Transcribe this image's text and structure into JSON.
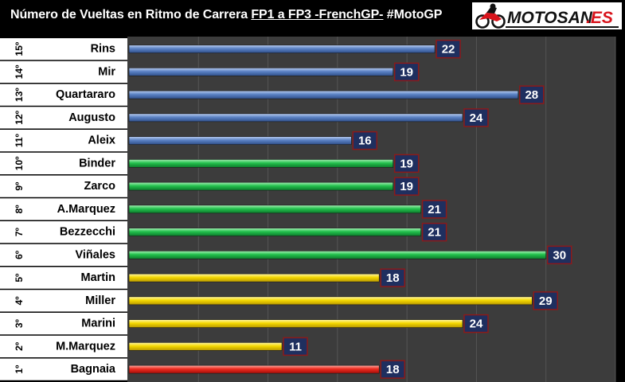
{
  "header": {
    "title_part1": "Número de Vueltas en Ritmo de Carrera ",
    "title_part2": "FP1 a FP3 -FrenchGP-",
    "title_part3": " #MotoGP",
    "logo_main": "MOTOSAN",
    "logo_suffix": ".ES"
  },
  "colors": {
    "background": "#000000",
    "plot_background": "#3c3c3c",
    "label_background": "#ffffff",
    "value_badge": "#1f2f5f",
    "value_badge_border": "#8b1a1a",
    "blue_bar": "#4f74b3",
    "green_bar": "#21b84a",
    "yellow_bar": "#f2d400",
    "red_bar": "#e8251c",
    "logo_red": "#d8141c"
  },
  "chart_data": {
    "type": "bar",
    "orientation": "horizontal",
    "title": "Número de Vueltas en Ritmo de Carrera FP1 a FP3 -FrenchGP- #MotoGP",
    "categories": [
      "Rins",
      "Mir",
      "Quartararo",
      "Augusto",
      "Aleix",
      "Binder",
      "Zarco",
      "A.Marquez",
      "Bezzecchi",
      "Viñales",
      "Martin",
      "Miller",
      "Marini",
      "M.Marquez",
      "Bagnaia"
    ],
    "positions": [
      "15º",
      "14º",
      "13º",
      "12º",
      "11º",
      "10º",
      "9º",
      "8º",
      "7º",
      "6º",
      "5º",
      "4º",
      "3º",
      "2º",
      "1º"
    ],
    "values": [
      22,
      19,
      28,
      24,
      16,
      19,
      19,
      21,
      21,
      30,
      18,
      29,
      24,
      11,
      18
    ],
    "bar_colors": [
      "blue",
      "blue",
      "blue",
      "blue",
      "blue",
      "green",
      "green",
      "green",
      "green",
      "green",
      "yellow",
      "yellow",
      "yellow",
      "yellow",
      "red"
    ],
    "xlim": [
      0,
      35
    ],
    "grid": true,
    "data_labels": true
  }
}
